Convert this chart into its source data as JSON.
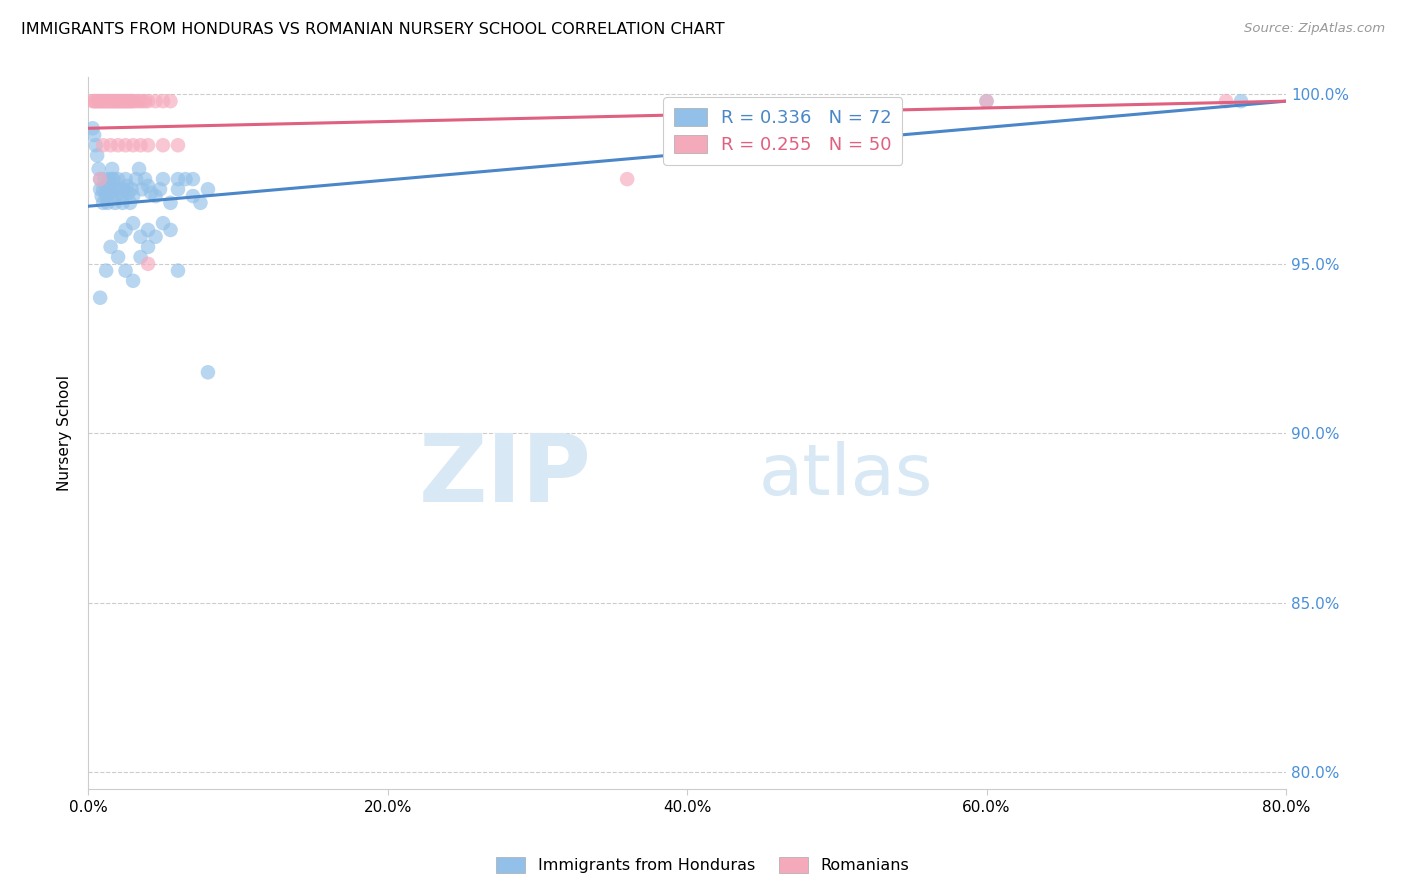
{
  "title": "IMMIGRANTS FROM HONDURAS VS ROMANIAN NURSERY SCHOOL CORRELATION CHART",
  "source": "Source: ZipAtlas.com",
  "ylabel_label": "Nursery School",
  "legend_blue_label": "Immigrants from Honduras",
  "legend_pink_label": "Romanians",
  "r_blue": 0.336,
  "n_blue": 72,
  "r_pink": 0.255,
  "n_pink": 50,
  "blue_color": "#92c0e8",
  "pink_color": "#f5aabc",
  "blue_line_color": "#4a86c8",
  "pink_line_color": "#e06080",
  "x_lim": [
    0.0,
    0.8
  ],
  "y_lim": [
    0.795,
    1.005
  ],
  "x_ticks": [
    0.0,
    0.2,
    0.4,
    0.6,
    0.8
  ],
  "x_ticklabels": [
    "0.0%",
    "20.0%",
    "40.0%",
    "60.0%",
    "80.0%"
  ],
  "y_ticks": [
    0.8,
    0.85,
    0.9,
    0.95,
    1.0
  ],
  "y_ticklabels": [
    "80.0%",
    "85.0%",
    "90.0%",
    "95.0%",
    "100.0%"
  ],
  "background_color": "#ffffff",
  "grid_color": "#cccccc",
  "watermark_zip": "ZIP",
  "watermark_atlas": "atlas",
  "watermark_color": "#d8e8f5",
  "blue_scatter_x": [
    0.003,
    0.004,
    0.005,
    0.006,
    0.007,
    0.008,
    0.008,
    0.009,
    0.01,
    0.01,
    0.011,
    0.012,
    0.012,
    0.013,
    0.013,
    0.014,
    0.015,
    0.015,
    0.016,
    0.016,
    0.017,
    0.018,
    0.018,
    0.019,
    0.02,
    0.021,
    0.022,
    0.023,
    0.024,
    0.025,
    0.026,
    0.027,
    0.028,
    0.029,
    0.03,
    0.032,
    0.034,
    0.036,
    0.038,
    0.04,
    0.042,
    0.045,
    0.048,
    0.05,
    0.055,
    0.06,
    0.065,
    0.07,
    0.075,
    0.08,
    0.022,
    0.025,
    0.03,
    0.035,
    0.04,
    0.045,
    0.05,
    0.055,
    0.06,
    0.07,
    0.008,
    0.012,
    0.015,
    0.02,
    0.025,
    0.03,
    0.035,
    0.04,
    0.06,
    0.08,
    0.6,
    0.77
  ],
  "blue_scatter_y": [
    0.99,
    0.988,
    0.985,
    0.982,
    0.978,
    0.975,
    0.972,
    0.97,
    0.968,
    0.972,
    0.975,
    0.973,
    0.97,
    0.968,
    0.972,
    0.975,
    0.973,
    0.971,
    0.975,
    0.978,
    0.975,
    0.972,
    0.968,
    0.97,
    0.975,
    0.972,
    0.97,
    0.968,
    0.972,
    0.975,
    0.973,
    0.971,
    0.968,
    0.972,
    0.97,
    0.975,
    0.978,
    0.972,
    0.975,
    0.973,
    0.971,
    0.97,
    0.972,
    0.975,
    0.968,
    0.972,
    0.975,
    0.97,
    0.968,
    0.972,
    0.958,
    0.96,
    0.962,
    0.958,
    0.96,
    0.958,
    0.962,
    0.96,
    0.975,
    0.975,
    0.94,
    0.948,
    0.955,
    0.952,
    0.948,
    0.945,
    0.952,
    0.955,
    0.948,
    0.918,
    0.998,
    0.998
  ],
  "pink_scatter_x": [
    0.003,
    0.004,
    0.005,
    0.006,
    0.007,
    0.008,
    0.009,
    0.01,
    0.011,
    0.012,
    0.013,
    0.014,
    0.015,
    0.016,
    0.017,
    0.018,
    0.019,
    0.02,
    0.021,
    0.022,
    0.023,
    0.024,
    0.025,
    0.026,
    0.027,
    0.028,
    0.029,
    0.03,
    0.032,
    0.034,
    0.036,
    0.038,
    0.04,
    0.045,
    0.05,
    0.055,
    0.01,
    0.015,
    0.02,
    0.025,
    0.03,
    0.035,
    0.04,
    0.05,
    0.06,
    0.04,
    0.6,
    0.76,
    0.008,
    0.36
  ],
  "pink_scatter_y": [
    0.998,
    0.998,
    0.998,
    0.998,
    0.998,
    0.998,
    0.998,
    0.998,
    0.998,
    0.998,
    0.998,
    0.998,
    0.998,
    0.998,
    0.998,
    0.998,
    0.998,
    0.998,
    0.998,
    0.998,
    0.998,
    0.998,
    0.998,
    0.998,
    0.998,
    0.998,
    0.998,
    0.998,
    0.998,
    0.998,
    0.998,
    0.998,
    0.998,
    0.998,
    0.998,
    0.998,
    0.985,
    0.985,
    0.985,
    0.985,
    0.985,
    0.985,
    0.985,
    0.985,
    0.985,
    0.95,
    0.998,
    0.998,
    0.975,
    0.975
  ]
}
